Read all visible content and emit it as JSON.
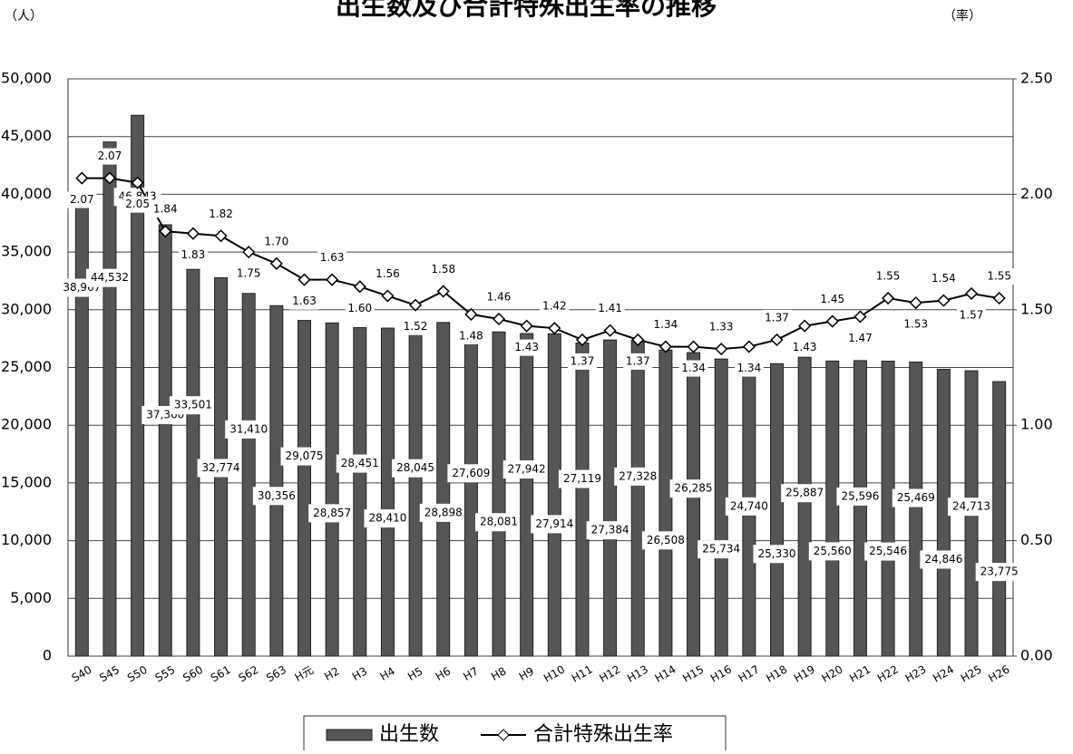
{
  "chart_data": {
    "type": "bar",
    "title": "出生数及び合計特殊出生率の推移",
    "y_label": "（人）",
    "y2_label": "（率）",
    "categories": [
      "S40",
      "S45",
      "S50",
      "S55",
      "S60",
      "S61",
      "S62",
      "S63",
      "H元",
      "H2",
      "H3",
      "H4",
      "H5",
      "H6",
      "H7",
      "H8",
      "H9",
      "H10",
      "H11",
      "H12",
      "H13",
      "H14",
      "H15",
      "H16",
      "H17",
      "H18",
      "H19",
      "H20",
      "H21",
      "H22",
      "H23",
      "H24",
      "H25",
      "H26"
    ],
    "series": [
      {
        "name": "出生数",
        "type": "bar",
        "color": "#555555",
        "values": [
          38967,
          44532,
          46843,
          37360,
          33501,
          32774,
          31410,
          30356,
          29075,
          28857,
          28451,
          28410,
          28045,
          28898,
          27609,
          28081,
          27942,
          27914,
          27119,
          27384,
          27328,
          26508,
          26285,
          25734,
          24740,
          25330,
          25887,
          25560,
          25596,
          25546,
          25469,
          24846,
          24713,
          23775
        ],
        "value_labels": [
          "38,967",
          "44,532",
          "46,843",
          "37,360",
          "33,501",
          "32,774",
          "31,410",
          "30,356",
          "29,075",
          "28,857",
          "28,451",
          "28,410",
          "28,045",
          "28,898",
          "27,609",
          "28,081",
          "27,942",
          "27,914",
          "27,119",
          "27,384",
          "27,328",
          "26,508",
          "26,285",
          "25,734",
          "24,740",
          "25,330",
          "25,887",
          "25,560",
          "25,596",
          "25,546",
          "25,469",
          "24,846",
          "24,713",
          "23,775"
        ]
      },
      {
        "name": "合計特殊出生率",
        "type": "line",
        "axis": "y2",
        "color": "#000000",
        "values": [
          2.07,
          2.07,
          2.05,
          1.84,
          1.83,
          1.82,
          1.75,
          1.7,
          1.63,
          1.63,
          1.6,
          1.56,
          1.52,
          1.58,
          1.48,
          1.46,
          1.43,
          1.42,
          1.37,
          1.41,
          1.37,
          1.34,
          1.34,
          1.33,
          1.34,
          1.37,
          1.43,
          1.45,
          1.47,
          1.55,
          1.53,
          1.54,
          1.57,
          1.55
        ],
        "value_labels": [
          "2.07",
          "2.07",
          "2.05",
          "1.84",
          "1.83",
          "1.82",
          "1.75",
          "1.70",
          "1.63",
          "1.63",
          "1.60",
          "1.56",
          "1.52",
          "1.58",
          "1.48",
          "1.46",
          "1.43",
          "1.42",
          "1.37",
          "1.41",
          "1.37",
          "1.34",
          "1.34",
          "1.33",
          "1.34",
          "1.37",
          "1.43",
          "1.45",
          "1.47",
          "1.55",
          "1.53",
          "1.54",
          "1.57",
          "1.55"
        ]
      }
    ],
    "ylim": [
      0,
      50000
    ],
    "yticks": [
      0,
      {
        "value": 5000,
        "label": "5,000"
      },
      {
        "value": 10000,
        "label": "10,000"
      },
      {
        "value": 15000,
        "label": "15,000"
      },
      {
        "value": 20000,
        "label": "20,000"
      },
      {
        "value": 25000,
        "label": "25,000"
      },
      {
        "value": 30000,
        "label": "30,000"
      },
      {
        "value": 35000,
        "label": "35,000"
      },
      {
        "value": 40000,
        "label": "40,000"
      },
      {
        "value": 45000,
        "label": "45,000"
      },
      {
        "value": 50000,
        "label": "50,000"
      }
    ],
    "y2lim": [
      0,
      2.5
    ],
    "y2ticks": [
      {
        "value": 0,
        "label": "0.00"
      },
      {
        "value": 0.5,
        "label": "0.50"
      },
      {
        "value": 1,
        "label": "1.00"
      },
      {
        "value": 1.5,
        "label": "1.50"
      },
      {
        "value": 2,
        "label": "2.00"
      },
      {
        "value": 2.5,
        "label": "2.50"
      }
    ],
    "grid": true
  }
}
